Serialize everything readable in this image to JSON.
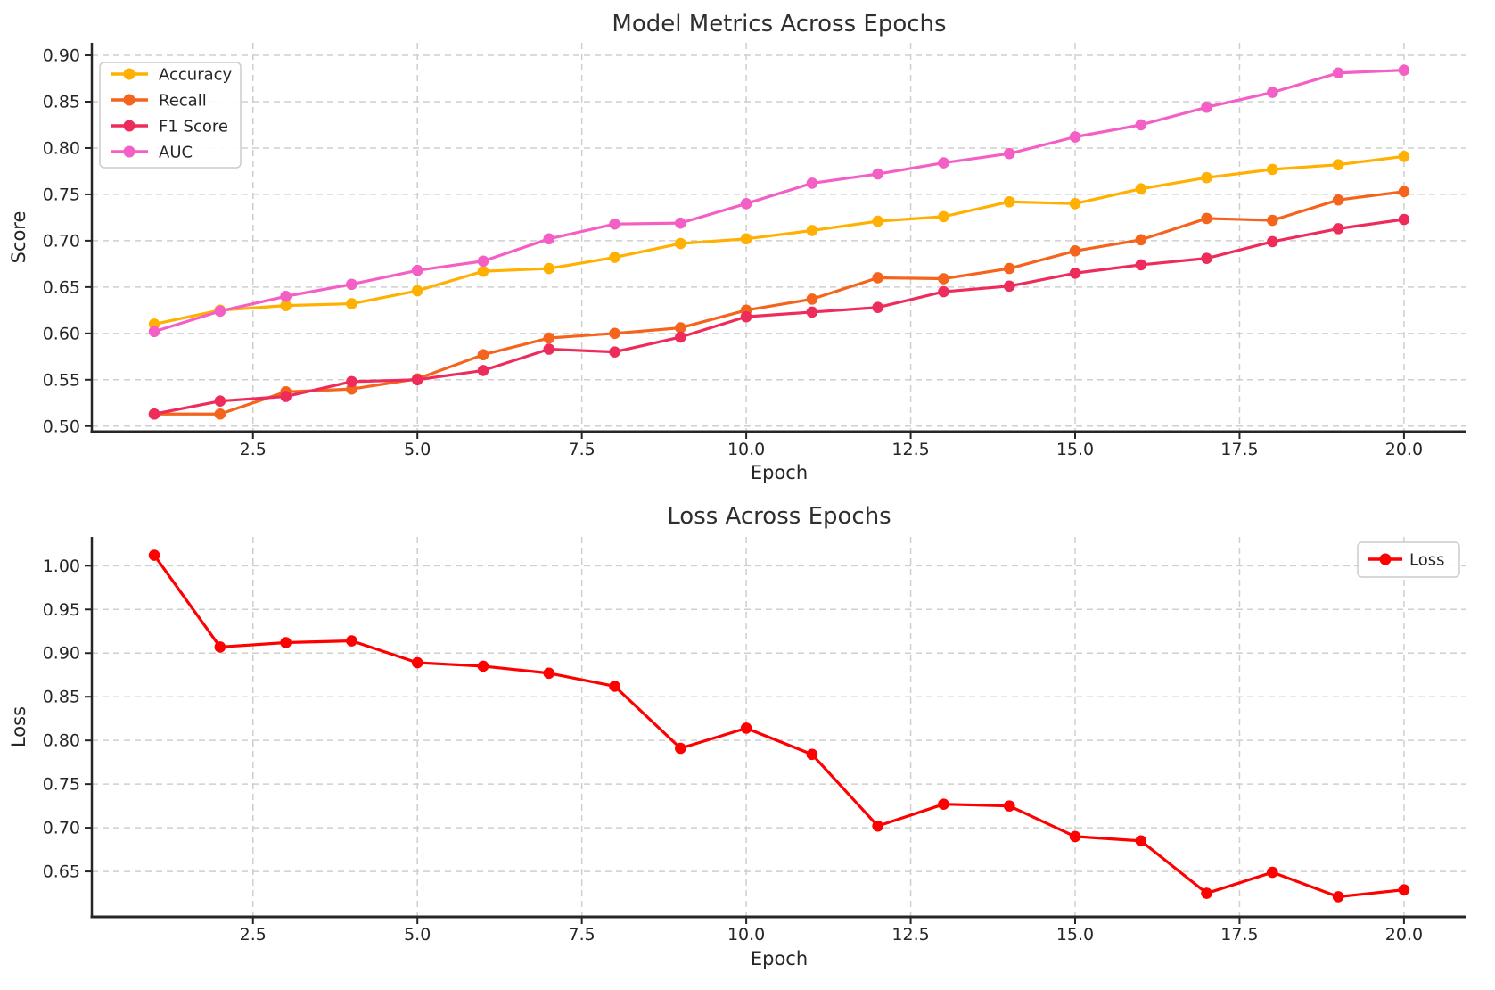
{
  "figure": {
    "background": "#ffffff",
    "text_color": "#262626"
  },
  "chart_data": [
    {
      "type": "line",
      "title": "Model Metrics Across Epochs",
      "xlabel": "Epoch",
      "ylabel": "Score",
      "x": [
        1,
        2,
        3,
        4,
        5,
        6,
        7,
        8,
        9,
        10,
        11,
        12,
        13,
        14,
        15,
        16,
        17,
        18,
        19,
        20
      ],
      "series": [
        {
          "name": "Accuracy",
          "color": "#FFB000",
          "values": [
            0.61,
            0.625,
            0.63,
            0.632,
            0.646,
            0.667,
            0.67,
            0.682,
            0.697,
            0.702,
            0.711,
            0.721,
            0.726,
            0.742,
            0.74,
            0.756,
            0.768,
            0.777,
            0.782,
            0.791
          ]
        },
        {
          "name": "Recall",
          "color": "#F4641D",
          "values": [
            0.513,
            0.513,
            0.537,
            0.54,
            0.551,
            0.577,
            0.595,
            0.6,
            0.606,
            0.625,
            0.637,
            0.66,
            0.659,
            0.67,
            0.689,
            0.701,
            0.724,
            0.722,
            0.744,
            0.753
          ]
        },
        {
          "name": "F1 Score",
          "color": "#EE2C5B",
          "values": [
            0.513,
            0.527,
            0.532,
            0.548,
            0.55,
            0.56,
            0.583,
            0.58,
            0.596,
            0.618,
            0.623,
            0.628,
            0.645,
            0.651,
            0.665,
            0.674,
            0.681,
            0.699,
            0.713,
            0.723
          ]
        },
        {
          "name": "AUC",
          "color": "#F45FC5",
          "values": [
            0.602,
            0.624,
            0.64,
            0.653,
            0.668,
            0.678,
            0.702,
            0.718,
            0.719,
            0.74,
            0.762,
            0.772,
            0.784,
            0.794,
            0.812,
            0.825,
            0.844,
            0.86,
            0.881,
            0.884
          ]
        }
      ],
      "xlim": [
        0.05,
        20.95
      ],
      "ylim": [
        0.494,
        0.9135
      ],
      "xticks": [
        2.5,
        5.0,
        7.5,
        10.0,
        12.5,
        15.0,
        17.5,
        20.0
      ],
      "xtick_labels": [
        "2.5",
        "5.0",
        "7.5",
        "10.0",
        "12.5",
        "15.0",
        "17.5",
        "20.0"
      ],
      "yticks": [
        0.5,
        0.55,
        0.6,
        0.65,
        0.7,
        0.75,
        0.8,
        0.85,
        0.9
      ],
      "ytick_labels": [
        "0.50",
        "0.55",
        "0.60",
        "0.65",
        "0.70",
        "0.75",
        "0.80",
        "0.85",
        "0.90"
      ],
      "grid": true,
      "grid_color": "#cfcfcf",
      "spine_color": "#262626",
      "legend_pos": "upper left"
    },
    {
      "type": "line",
      "title": "Loss Across Epochs",
      "xlabel": "Epoch",
      "ylabel": "Loss",
      "x": [
        1,
        2,
        3,
        4,
        5,
        6,
        7,
        8,
        9,
        10,
        11,
        12,
        13,
        14,
        15,
        16,
        17,
        18,
        19,
        20
      ],
      "series": [
        {
          "name": "Loss",
          "color": "#FF0000",
          "values": [
            1.012,
            0.907,
            0.912,
            0.914,
            0.889,
            0.885,
            0.877,
            0.862,
            0.791,
            0.814,
            0.784,
            0.702,
            0.727,
            0.725,
            0.69,
            0.685,
            0.625,
            0.649,
            0.621,
            0.629
          ]
        }
      ],
      "xlim": [
        0.05,
        20.95
      ],
      "ylim": [
        0.598,
        1.033
      ],
      "xticks": [
        2.5,
        5.0,
        7.5,
        10.0,
        12.5,
        15.0,
        17.5,
        20.0
      ],
      "xtick_labels": [
        "2.5",
        "5.0",
        "7.5",
        "10.0",
        "12.5",
        "15.0",
        "17.5",
        "20.0"
      ],
      "yticks": [
        0.65,
        0.7,
        0.75,
        0.8,
        0.85,
        0.9,
        0.95,
        1.0
      ],
      "ytick_labels": [
        "0.65",
        "0.70",
        "0.75",
        "0.80",
        "0.85",
        "0.90",
        "0.95",
        "1.00"
      ],
      "grid": true,
      "grid_color": "#cfcfcf",
      "spine_color": "#262626",
      "legend_pos": "upper right"
    }
  ]
}
